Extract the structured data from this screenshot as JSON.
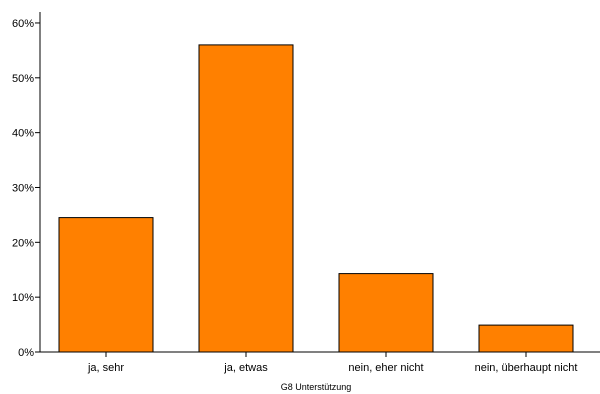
{
  "chart_data": {
    "type": "bar",
    "categories": [
      "ja, sehr",
      "ja, etwas",
      "nein, eher nicht",
      "nein, überhaupt nicht"
    ],
    "values": [
      24.5,
      56.0,
      14.3,
      4.9
    ],
    "xlabel": "G8  Unterstützung",
    "ylabel": "",
    "ylim": [
      0,
      62
    ],
    "yticks": [
      0,
      10,
      20,
      30,
      40,
      50,
      60
    ],
    "ytick_labels": [
      "0%",
      "10%",
      "20%",
      "30%",
      "40%",
      "50%",
      "60%"
    ],
    "grid": false,
    "bar_color": "#ff8000",
    "bar_edge_color": "#000000"
  }
}
